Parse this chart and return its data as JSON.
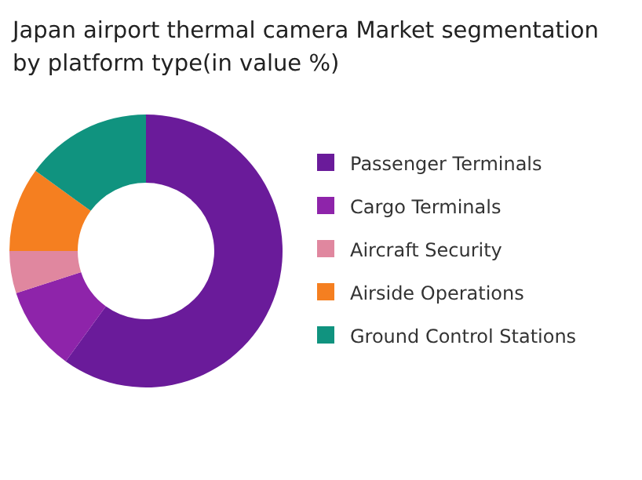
{
  "chart_data": {
    "type": "donut",
    "title": "Japan airport thermal camera Market segmentation by platform type(in value %)",
    "categories": [
      "Passenger Terminals",
      "Cargo Terminals",
      "Aircraft Security",
      "Airside Operations",
      "Ground Control Stations"
    ],
    "values": [
      60,
      10,
      5,
      10,
      15
    ],
    "colors": [
      "#6a1b9a",
      "#8e24aa",
      "#e0879f",
      "#f57f20",
      "#10937f"
    ],
    "legend": "right"
  }
}
